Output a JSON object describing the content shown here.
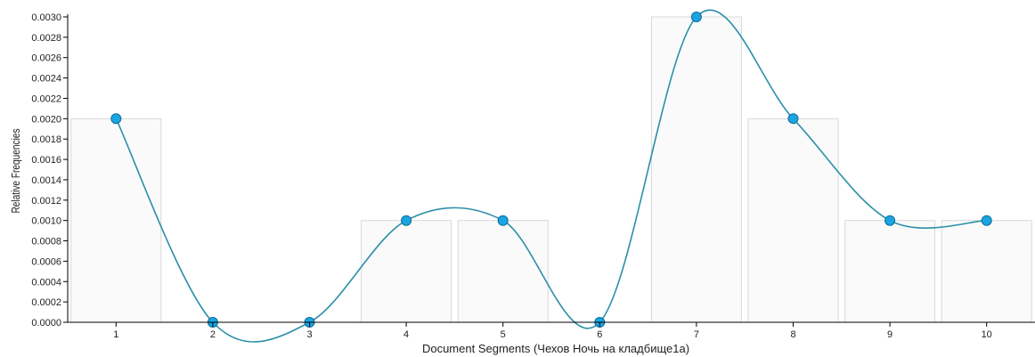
{
  "chart_data": {
    "type": "bar",
    "xlabel": "Document Segments (Чехов Ночь на кладбище1а)",
    "ylabel": "Relative Frequencies",
    "categories": [
      "1",
      "2",
      "3",
      "4",
      "5",
      "6",
      "7",
      "8",
      "9",
      "10"
    ],
    "values": [
      0.002,
      0,
      0,
      0.001,
      0.001,
      0,
      0.003,
      0.002,
      0.001,
      0.001
    ],
    "yticks": [
      "0.0000",
      "0.0002",
      "0.0004",
      "0.0006",
      "0.0008",
      "0.0010",
      "0.0012",
      "0.0014",
      "0.0016",
      "0.0018",
      "0.0020",
      "0.0022",
      "0.0024",
      "0.0026",
      "0.0028",
      "0.0030"
    ],
    "ylim": [
      0,
      0.003
    ],
    "grid": false,
    "overlay": "smoothed line with point markers",
    "colors": {
      "bar_fill": "#fafafa",
      "bar_stroke": "#d8d8d8",
      "line": "#2a8fa8",
      "point_fill": "#1aa4e0",
      "point_stroke": "#0d6e9c",
      "axis": "#000000"
    }
  }
}
